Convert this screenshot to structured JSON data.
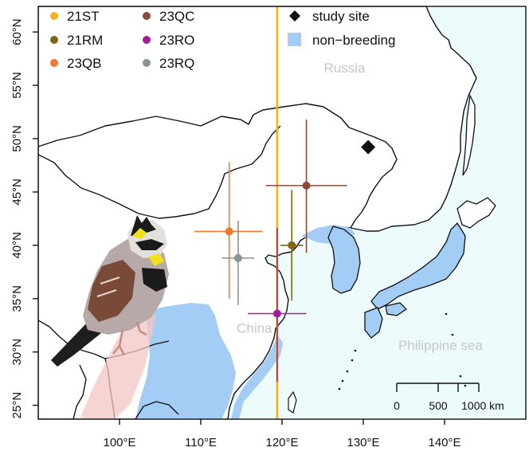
{
  "map": {
    "x_axis": {
      "range": [
        90,
        150
      ],
      "ticks": [
        {
          "value": 100,
          "label": "100°E"
        },
        {
          "value": 110,
          "label": "110°E"
        },
        {
          "value": 120,
          "label": "120°E"
        },
        {
          "value": 130,
          "label": "130°E"
        },
        {
          "value": 140,
          "label": "140°E"
        }
      ]
    },
    "y_axis": {
      "range": [
        23.7,
        62.4
      ],
      "ticks": [
        {
          "value": 25,
          "label": "25°N"
        },
        {
          "value": 30,
          "label": "30°N"
        },
        {
          "value": 35,
          "label": "35°N"
        },
        {
          "value": 40,
          "label": "40°N"
        },
        {
          "value": 45,
          "label": "45°N"
        },
        {
          "value": 50,
          "label": "50°N"
        },
        {
          "value": 55,
          "label": "55°N"
        },
        {
          "value": 60,
          "label": "60°N"
        }
      ]
    },
    "meridian_lon": 119.4,
    "meridian_color": "#f5b21f",
    "study_site": {
      "lon": 130.6,
      "lat": 49.2,
      "label": "study site"
    },
    "non_breeding": {
      "label": "non−breeding",
      "color": "#a3cdf4"
    },
    "ocean_color": "#eefbfd",
    "individuals": [
      {
        "id": "21ST",
        "color": "#f5b21f",
        "lon": 119.4,
        "lat": null
      },
      {
        "id": "21RM",
        "color": "#7f6512",
        "lon": 121.2,
        "lat": 40.0,
        "lon_err": [
          119.8,
          122.6
        ],
        "lat_err": [
          34.8,
          45.2
        ]
      },
      {
        "id": "23QB",
        "color": "#ee7a2c",
        "lon": 113.5,
        "lat": 41.3,
        "lon_err": [
          109.2,
          117.6
        ],
        "lat_err": [
          35.0,
          47.8
        ]
      },
      {
        "id": "23QC",
        "color": "#8c4a36",
        "lon": 123.0,
        "lat": 45.6,
        "lon_err": [
          118.0,
          128.0
        ],
        "lat_err": [
          39.3,
          51.8
        ]
      },
      {
        "id": "23RO",
        "color": "#a21c9c",
        "lon": 119.4,
        "lat": 33.6,
        "lon_err": [
          115.8,
          123.0
        ],
        "lat_err": [
          27.2,
          41.6
        ]
      },
      {
        "id": "23RQ",
        "color": "#8a9292",
        "lon": 114.6,
        "lat": 38.8,
        "lon_err": [
          112.6,
          116.6
        ],
        "lat_err": [
          34.4,
          42.3
        ]
      }
    ],
    "place_labels": [
      {
        "name": "Russia",
        "lon": 127.7,
        "lat": 56.2
      },
      {
        "name": "China",
        "lon": 116.6,
        "lat": 31.8
      },
      {
        "name": "Philippine sea",
        "lon": 139.5,
        "lat": 30.2
      }
    ],
    "scale_bar": {
      "labels": [
        "0",
        "500",
        "1000 km"
      ]
    }
  }
}
